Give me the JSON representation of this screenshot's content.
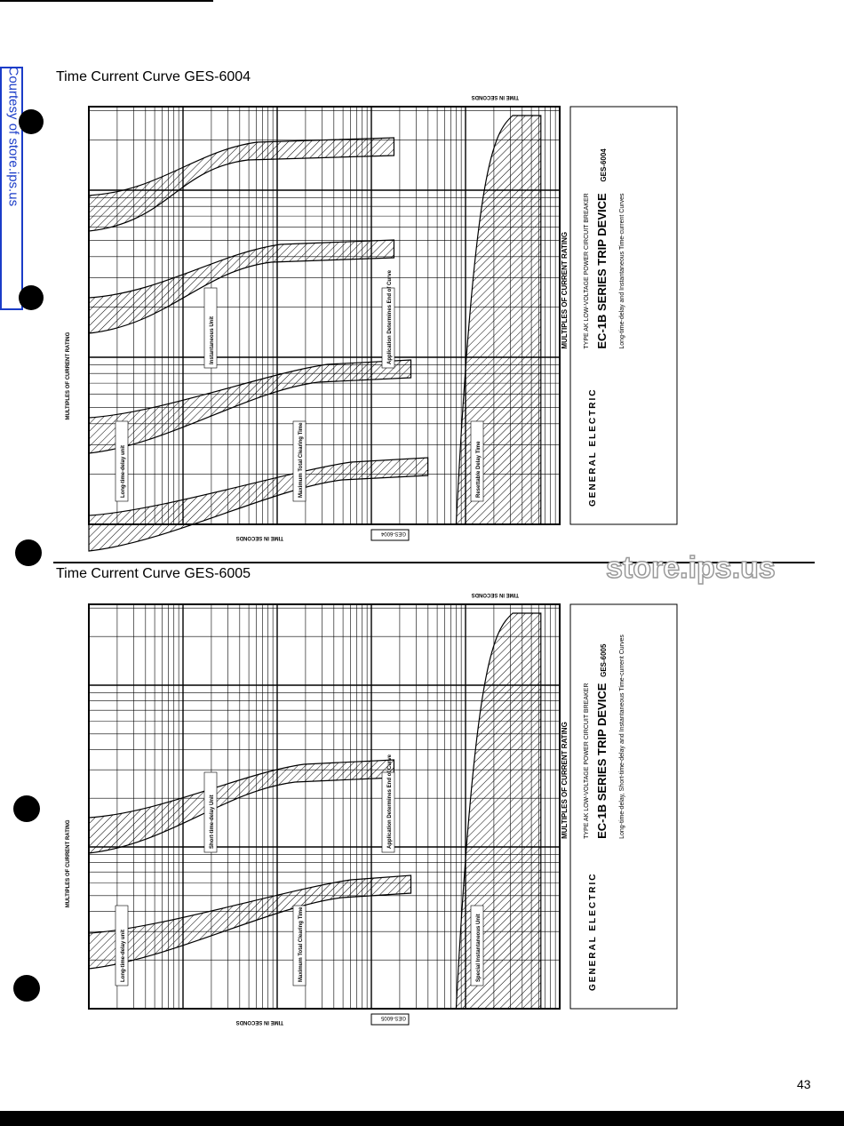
{
  "watermark": {
    "side": "Courtesy of store.ips.us",
    "logo": "store.ips.us"
  },
  "sections": [
    {
      "title": "Time Current Curve GES-6004",
      "chart": {
        "time_axis": "TIME IN SECONDS",
        "current_axis": "MULTIPLES OF CURRENT RATING",
        "code": "GES-6004",
        "brand": "GENERAL ELECTRIC",
        "breaker": "TYPE AK LOW-VOLTAGE POWER CIRCUIT BREAKER",
        "device": "EC-1B SERIES TRIP DEVICE",
        "description": "Long-time-delay and Instantaneous Time-current Curves",
        "labels": [
          "Long-time-delay unit",
          "Instantaneous Unit",
          "Maximum Total Clearing Time",
          "Application Determines End of Curve",
          "Resettable Delay Time"
        ]
      }
    },
    {
      "title": "Time Current Curve GES-6005",
      "chart": {
        "time_axis": "TIME IN SECONDS",
        "current_axis": "MULTIPLES OF CURRENT RATING",
        "code": "GES-6005",
        "brand": "GENERAL ELECTRIC",
        "breaker": "TYPE AK LOW-VOLTAGE POWER CIRCUIT BREAKER",
        "device": "EC-1B SERIES TRIP DEVICE",
        "description": "Long-time-delay, Short-time-delay and Instantaneous Time-current Curves",
        "labels": [
          "Long-time-delay unit",
          "Short-time-delay Unit",
          "Maximum Total Clearing Time",
          "Application Determines End of Curve",
          "Special Instantaneous Unit"
        ]
      }
    }
  ],
  "page_number": "43"
}
